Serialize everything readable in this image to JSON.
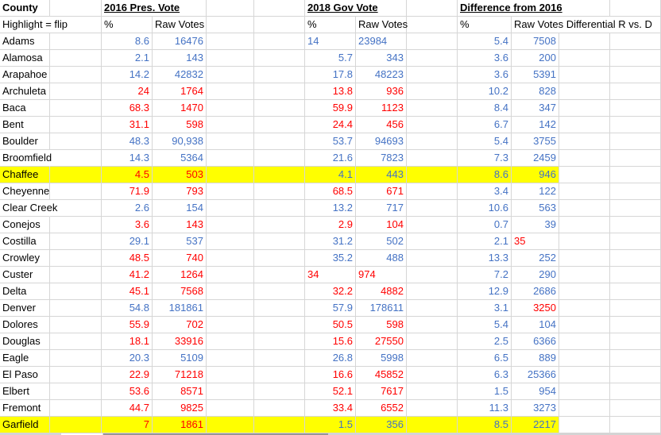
{
  "colors": {
    "dem_blue": "#4472C4",
    "rep_red": "#FF0000",
    "flip_highlight": "#FFFF00",
    "gridline": "#D6D6D6"
  },
  "header": {
    "col_county": "County",
    "col_2016": "2016 Pres. Vote",
    "col_2018": "2018 Gov Vote",
    "col_diff": "Difference from 2016",
    "sub_highlight_note": "Highlight = flip",
    "sub_pct_2016": "%",
    "sub_raw_2016": "Raw Votes",
    "sub_pct_2018": "%",
    "sub_raw_2018": "Raw Votes",
    "sub_pct_diff": "%",
    "sub_raw_diff": "Raw Votes Differential R vs. D"
  },
  "table": {
    "rows": [
      {
        "county": "Adams",
        "hl": false,
        "p16": "8.6",
        "v16": "16476",
        "p18": "14",
        "v18": "23984",
        "pd": "5.4",
        "vd": "7508",
        "colors": {
          "p16": "blue",
          "v16": "blue",
          "p18": "blue",
          "v18": "blue",
          "pd": "blue",
          "vd": "blue"
        },
        "align": {
          "p18": "left",
          "v18": "left"
        }
      },
      {
        "county": "Alamosa",
        "hl": false,
        "p16": "2.1",
        "v16": "143",
        "p18": "5.7",
        "v18": "343",
        "pd": "3.6",
        "vd": "200",
        "colors": {
          "p16": "blue",
          "v16": "blue",
          "p18": "blue",
          "v18": "blue",
          "pd": "blue",
          "vd": "blue"
        },
        "align": {}
      },
      {
        "county": "Arapahoe",
        "hl": false,
        "p16": "14.2",
        "v16": "42832",
        "p18": "17.8",
        "v18": "48223",
        "pd": "3.6",
        "vd": "5391",
        "colors": {
          "p16": "blue",
          "v16": "blue",
          "p18": "blue",
          "v18": "blue",
          "pd": "blue",
          "vd": "blue"
        },
        "align": {}
      },
      {
        "county": "Archuleta",
        "hl": false,
        "p16": "24",
        "v16": "1764",
        "p18": "13.8",
        "v18": "936",
        "pd": "10.2",
        "vd": "828",
        "colors": {
          "p16": "red",
          "v16": "red",
          "p18": "red",
          "v18": "red",
          "pd": "blue",
          "vd": "blue"
        },
        "align": {}
      },
      {
        "county": "Baca",
        "hl": false,
        "p16": "68.3",
        "v16": "1470",
        "p18": "59.9",
        "v18": "1123",
        "pd": "8.4",
        "vd": "347",
        "colors": {
          "p16": "red",
          "v16": "red",
          "p18": "red",
          "v18": "red",
          "pd": "blue",
          "vd": "blue"
        },
        "align": {}
      },
      {
        "county": "Bent",
        "hl": false,
        "p16": "31.1",
        "v16": "598",
        "p18": "24.4",
        "v18": "456",
        "pd": "6.7",
        "vd": "142",
        "colors": {
          "p16": "red",
          "v16": "red",
          "p18": "red",
          "v18": "red",
          "pd": "blue",
          "vd": "blue"
        },
        "align": {}
      },
      {
        "county": "Boulder",
        "hl": false,
        "p16": "48.3",
        "v16": "90,938",
        "p18": "53.7",
        "v18": "94693",
        "pd": "5.4",
        "vd": "3755",
        "colors": {
          "p16": "blue",
          "v16": "blue",
          "p18": "blue",
          "v18": "blue",
          "pd": "blue",
          "vd": "blue"
        },
        "align": {}
      },
      {
        "county": "Broomfield",
        "hl": false,
        "p16": "14.3",
        "v16": "5364",
        "p18": "21.6",
        "v18": "7823",
        "pd": "7.3",
        "vd": "2459",
        "colors": {
          "p16": "blue",
          "v16": "blue",
          "p18": "blue",
          "v18": "blue",
          "pd": "blue",
          "vd": "blue"
        },
        "align": {}
      },
      {
        "county": "Chaffee",
        "hl": true,
        "p16": "4.5",
        "v16": "503",
        "p18": "4.1",
        "v18": "443",
        "pd": "8.6",
        "vd": "946",
        "colors": {
          "p16": "red",
          "v16": "red",
          "p18": "blue",
          "v18": "blue",
          "pd": "blue",
          "vd": "blue"
        },
        "align": {}
      },
      {
        "county": "Cheyenne",
        "hl": false,
        "p16": "71.9",
        "v16": "793",
        "p18": "68.5",
        "v18": "671",
        "pd": "3.4",
        "vd": "122",
        "colors": {
          "p16": "red",
          "v16": "red",
          "p18": "red",
          "v18": "red",
          "pd": "blue",
          "vd": "blue"
        },
        "align": {}
      },
      {
        "county": "Clear Creek",
        "hl": false,
        "p16": "2.6",
        "v16": "154",
        "p18": "13.2",
        "v18": "717",
        "pd": "10.6",
        "vd": "563",
        "colors": {
          "p16": "blue",
          "v16": "blue",
          "p18": "blue",
          "v18": "blue",
          "pd": "blue",
          "vd": "blue"
        },
        "align": {}
      },
      {
        "county": "Conejos",
        "hl": false,
        "p16": "3.6",
        "v16": "143",
        "p18": "2.9",
        "v18": "104",
        "pd": "0.7",
        "vd": "39",
        "colors": {
          "p16": "red",
          "v16": "red",
          "p18": "red",
          "v18": "red",
          "pd": "blue",
          "vd": "blue"
        },
        "align": {}
      },
      {
        "county": "Costilla",
        "hl": false,
        "p16": "29.1",
        "v16": "537",
        "p18": "31.2",
        "v18": "502",
        "pd": "2.1",
        "vd": "35",
        "colors": {
          "p16": "blue",
          "v16": "blue",
          "p18": "blue",
          "v18": "blue",
          "pd": "blue",
          "vd": "red"
        },
        "align": {
          "vd": "left"
        }
      },
      {
        "county": "Crowley",
        "hl": false,
        "p16": "48.5",
        "v16": "740",
        "p18": "35.2",
        "v18": "488",
        "pd": "13.3",
        "vd": "252",
        "colors": {
          "p16": "red",
          "v16": "red",
          "p18": "blue",
          "v18": "blue",
          "pd": "blue",
          "vd": "blue"
        },
        "align": {}
      },
      {
        "county": "Custer",
        "hl": false,
        "p16": "41.2",
        "v16": "1264",
        "p18": "34",
        "v18": "974",
        "pd": "7.2",
        "vd": "290",
        "colors": {
          "p16": "red",
          "v16": "red",
          "p18": "red",
          "v18": "red",
          "pd": "blue",
          "vd": "blue"
        },
        "align": {
          "p18": "left",
          "v18": "left"
        }
      },
      {
        "county": "Delta",
        "hl": false,
        "p16": "45.1",
        "v16": "7568",
        "p18": "32.2",
        "v18": "4882",
        "pd": "12.9",
        "vd": "2686",
        "colors": {
          "p16": "red",
          "v16": "red",
          "p18": "red",
          "v18": "red",
          "pd": "blue",
          "vd": "blue"
        },
        "align": {}
      },
      {
        "county": "Denver",
        "hl": false,
        "p16": "54.8",
        "v16": "181861",
        "p18": "57.9",
        "v18": "178611",
        "pd": "3.1",
        "vd": "3250",
        "colors": {
          "p16": "blue",
          "v16": "blue",
          "p18": "blue",
          "v18": "blue",
          "pd": "blue",
          "vd": "red"
        },
        "align": {}
      },
      {
        "county": "Dolores",
        "hl": false,
        "p16": "55.9",
        "v16": "702",
        "p18": "50.5",
        "v18": "598",
        "pd": "5.4",
        "vd": "104",
        "colors": {
          "p16": "red",
          "v16": "red",
          "p18": "red",
          "v18": "red",
          "pd": "blue",
          "vd": "blue"
        },
        "align": {}
      },
      {
        "county": "Douglas",
        "hl": false,
        "p16": "18.1",
        "v16": "33916",
        "p18": "15.6",
        "v18": "27550",
        "pd": "2.5",
        "vd": "6366",
        "colors": {
          "p16": "red",
          "v16": "red",
          "p18": "red",
          "v18": "red",
          "pd": "blue",
          "vd": "blue"
        },
        "align": {}
      },
      {
        "county": "Eagle",
        "hl": false,
        "p16": "20.3",
        "v16": "5109",
        "p18": "26.8",
        "v18": "5998",
        "pd": "6.5",
        "vd": "889",
        "colors": {
          "p16": "blue",
          "v16": "blue",
          "p18": "blue",
          "v18": "blue",
          "pd": "blue",
          "vd": "blue"
        },
        "align": {}
      },
      {
        "county": "El Paso",
        "hl": false,
        "p16": "22.9",
        "v16": "71218",
        "p18": "16.6",
        "v18": "45852",
        "pd": "6.3",
        "vd": "25366",
        "colors": {
          "p16": "red",
          "v16": "red",
          "p18": "red",
          "v18": "red",
          "pd": "blue",
          "vd": "blue"
        },
        "align": {}
      },
      {
        "county": "Elbert",
        "hl": false,
        "p16": "53.6",
        "v16": "8571",
        "p18": "52.1",
        "v18": "7617",
        "pd": "1.5",
        "vd": "954",
        "colors": {
          "p16": "red",
          "v16": "red",
          "p18": "red",
          "v18": "red",
          "pd": "blue",
          "vd": "blue"
        },
        "align": {}
      },
      {
        "county": "Fremont",
        "hl": false,
        "p16": "44.7",
        "v16": "9825",
        "p18": "33.4",
        "v18": "6552",
        "pd": "11.3",
        "vd": "3273",
        "colors": {
          "p16": "red",
          "v16": "red",
          "p18": "red",
          "v18": "red",
          "pd": "blue",
          "vd": "blue"
        },
        "align": {}
      },
      {
        "county": "Garfield",
        "hl": true,
        "p16": "7",
        "v16": "1861",
        "p18": "1.5",
        "v18": "356",
        "pd": "8.5",
        "vd": "2217",
        "colors": {
          "p16": "red",
          "v16": "red",
          "p18": "blue",
          "v18": "blue",
          "pd": "blue",
          "vd": "blue"
        },
        "align": {}
      }
    ]
  }
}
